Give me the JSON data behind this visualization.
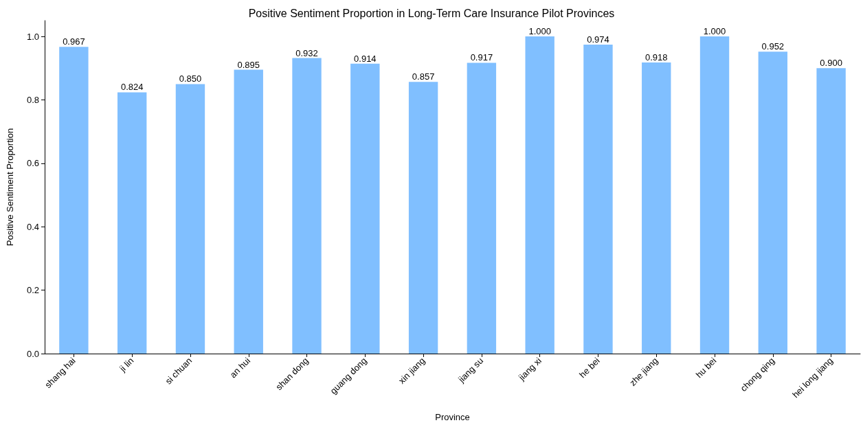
{
  "chart_data": {
    "type": "bar",
    "title": "Positive Sentiment Proportion in Long-Term Care Insurance Pilot Provinces",
    "xlabel": "Province",
    "ylabel": "Positive Sentiment Proportion",
    "categories": [
      "shang hai",
      "ji lin",
      "si chuan",
      "an hui",
      "shan dong",
      "guang dong",
      "xin jiang",
      "jiang su",
      "jiang xi",
      "he bei",
      "zhe jiang",
      "hu bei",
      "chong qing",
      "hei long jiang"
    ],
    "values": [
      0.967,
      0.824,
      0.85,
      0.895,
      0.932,
      0.914,
      0.857,
      0.917,
      1.0,
      0.974,
      0.918,
      1.0,
      0.952,
      0.9
    ],
    "value_labels": [
      "0.967",
      "0.824",
      "0.850",
      "0.895",
      "0.932",
      "0.914",
      "0.857",
      "0.917",
      "1.000",
      "0.974",
      "0.918",
      "1.000",
      "0.952",
      "0.900"
    ],
    "color": "#80bfff",
    "ylim": [
      0,
      1.05
    ],
    "yticks": [
      {
        "value": 0,
        "label": "0.0"
      },
      0.2,
      0.4,
      0.6,
      0.8,
      {
        "value": 1,
        "label": "1.0"
      }
    ],
    "grid": false
  }
}
